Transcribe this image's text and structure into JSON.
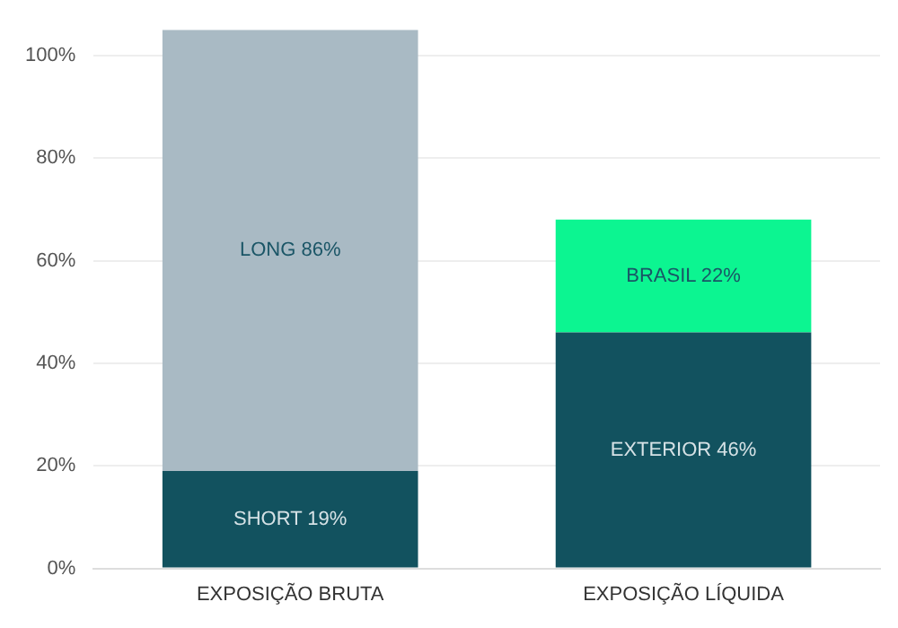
{
  "chart_data": {
    "type": "bar",
    "stacked": true,
    "categories": [
      "EXPOSIÇÃO BRUTA",
      "EXPOSIÇÃO LÍQUIDA"
    ],
    "series": [
      {
        "colors": [
          "#12525f",
          "#12525f"
        ],
        "values": [
          19,
          46
        ],
        "value_labels": [
          "SHORT 19%",
          "EXTERIOR 46%"
        ]
      },
      {
        "colors": [
          "#a9bac4",
          "#0cf591"
        ],
        "values": [
          86,
          22
        ],
        "value_labels": [
          "LONG 86%",
          "BRASIL 22%"
        ]
      }
    ],
    "ylim": [
      0,
      105
    ],
    "yticks": [
      {
        "value": 0,
        "label": "0%"
      },
      {
        "value": 20,
        "label": "20%"
      },
      {
        "value": 40,
        "label": "40%"
      },
      {
        "value": 60,
        "label": "60%"
      },
      {
        "value": 80,
        "label": "80%"
      },
      {
        "value": 100,
        "label": "100%"
      }
    ],
    "grid": "y",
    "legend": false
  }
}
